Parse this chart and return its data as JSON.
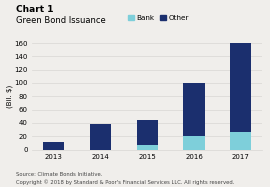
{
  "title": "Chart 1",
  "subtitle": "Green Bond Issuance",
  "years": [
    "2013",
    "2014",
    "2015",
    "2016",
    "2017"
  ],
  "bank_values": [
    0,
    0,
    7,
    20,
    26
  ],
  "other_values": [
    12,
    38,
    37,
    80,
    137
  ],
  "bank_color": "#7ecfda",
  "other_color": "#1b2f6e",
  "ylabel": "(Bil. $)",
  "ylim": [
    0,
    160
  ],
  "yticks": [
    0,
    20,
    40,
    60,
    80,
    100,
    120,
    140,
    160
  ],
  "legend_bank": "Bank",
  "legend_other": "Other",
  "footnote1": "Source: Climate Bonds Initiative.",
  "footnote2": "Copyright © 2018 by Standard & Poor's Financial Services LLC. All rights reserved.",
  "bg_color": "#f0eeeb",
  "plot_bg_color": "#f0eeeb",
  "grid_color": "#d8d6d3",
  "title_fontsize": 6.5,
  "subtitle_fontsize": 6.0,
  "axis_fontsize": 5.0,
  "legend_fontsize": 5.2,
  "footnote_fontsize": 3.8
}
